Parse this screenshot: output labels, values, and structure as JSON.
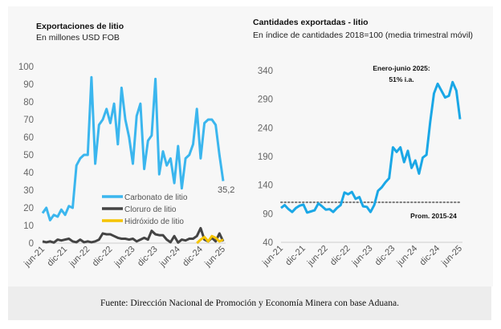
{
  "chart_data": [
    {
      "type": "line",
      "title": "Exportaciones de litio",
      "subtitle": "En millones USD FOB",
      "ylim": [
        0,
        100
      ],
      "yticks": [
        0,
        10,
        20,
        30,
        40,
        50,
        60,
        70,
        80,
        90,
        100
      ],
      "x_start": "jun-21",
      "x_end": "jun-25",
      "frequency": "monthly",
      "xtick_labels": [
        "jun-21",
        "dic-21",
        "jun-22",
        "dic-22",
        "jun-23",
        "dic-23",
        "jun-24",
        "dic-24",
        "jun-25"
      ],
      "legend": "center-right",
      "series": [
        {
          "name": "Carbonato de litio",
          "color": "#3bb6ee",
          "values": [
            17,
            20,
            13,
            16,
            15,
            19,
            16,
            21,
            20,
            44,
            48,
            50,
            50,
            94,
            45,
            67,
            70,
            76,
            68,
            79,
            56,
            88,
            70,
            60,
            45,
            72,
            79,
            42,
            58,
            61,
            93,
            39,
            52,
            44,
            48,
            34,
            55,
            31,
            48,
            50,
            56,
            76,
            48,
            68,
            70,
            70,
            67,
            50,
            35.2
          ]
        },
        {
          "name": "Cloruro de litio",
          "color": "#444444",
          "values": [
            1,
            0.5,
            1,
            0.3,
            2,
            1.5,
            2,
            2.5,
            1,
            0.5,
            2,
            0.5,
            1,
            0.5,
            1,
            2,
            5.5,
            5,
            5,
            4,
            3,
            2.5,
            2.5,
            2,
            2.5,
            1,
            2,
            3,
            2,
            7,
            5,
            4.5,
            4.5,
            2,
            0.5,
            4,
            0.3,
            2,
            1.5,
            2.5,
            2.5,
            4,
            8.5,
            2,
            1,
            3,
            1,
            5.5,
            1
          ]
        },
        {
          "name": "Hidróxido de litio",
          "color": "#f5c400",
          "start_index": 41,
          "values": [
            0,
            2,
            3.5,
            1,
            4,
            3,
            1,
            2
          ]
        }
      ],
      "annotations": [
        {
          "text": "35,2"
        }
      ]
    },
    {
      "type": "line",
      "title": "Cantidades exportadas - litio",
      "subtitle": "En índice de cantidades 2018=100 (media trimestral móvil)",
      "ylim": [
        40,
        340
      ],
      "yticks": [
        40,
        90,
        140,
        190,
        240,
        290,
        340
      ],
      "x_start": "jun-21",
      "x_end": "jun-25",
      "frequency": "monthly",
      "xtick_labels": [
        "jun-21",
        "dic-21",
        "jun-22",
        "dic-22",
        "jun-23",
        "dic-23",
        "jun-24",
        "dic-24",
        "jun-25"
      ],
      "series": [
        {
          "color": "#1aa7e6",
          "values": [
            100,
            105,
            98,
            93,
            100,
            104,
            106,
            92,
            94,
            96,
            108,
            103,
            97,
            98,
            93,
            100,
            105,
            127,
            124,
            128,
            116,
            119,
            103,
            102,
            93,
            105,
            130,
            136,
            145,
            152,
            206,
            198,
            206,
            180,
            200,
            170,
            183,
            160,
            188,
            193,
            250,
            300,
            317,
            305,
            293,
            296,
            320,
            305,
            255
          ]
        }
      ],
      "reference_line": {
        "label": "Prom. 2015-24",
        "value": 110,
        "color": "#777777"
      },
      "annotations": [
        {
          "text": "Enero-junio 2025:"
        },
        {
          "text": "51% i.a."
        }
      ]
    }
  ],
  "footer": "Fuente: Dirección Nacional de Promoción y Economía Minera con base Aduana."
}
